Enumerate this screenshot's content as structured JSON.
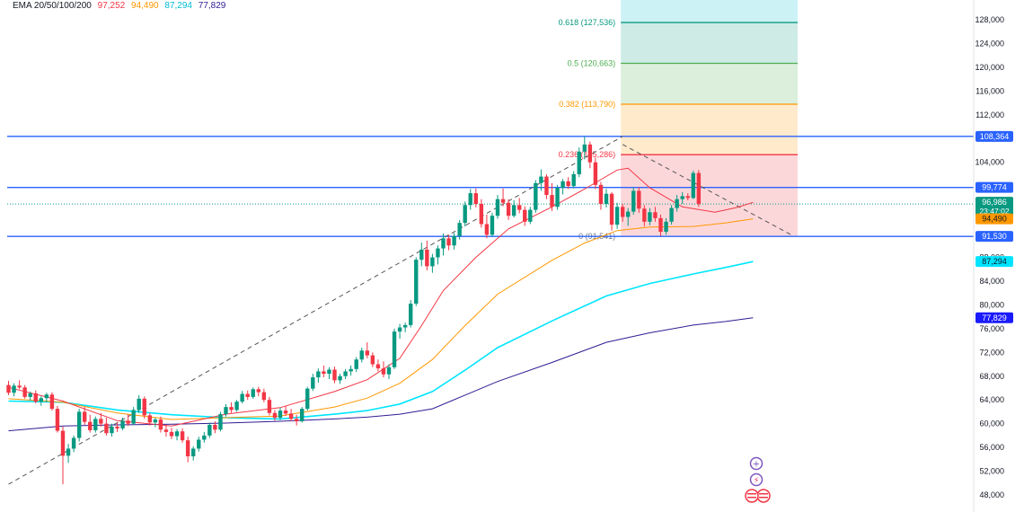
{
  "colors": {
    "up": "#089981",
    "down": "#f23645",
    "ema20": "#f23645",
    "ema50": "#ff9800",
    "ema100": "#00e5ff",
    "ema200": "#311b92",
    "hline": "#2962ff",
    "fib_0": "#787b86",
    "fib_0236": "#f23645",
    "fib_0382": "#ff9800",
    "fib_05": "#4caf50",
    "fib_0618": "#089981"
  },
  "legend": {
    "label": "EMA 20/50/100/200",
    "ema20": "97,252",
    "ema50": "94,490",
    "ema100": "87,294",
    "ema200": "77,829"
  },
  "price_tags": [
    {
      "key": "hl1",
      "text": "108,364",
      "value": 108364,
      "color": "#2962ff",
      "text_color": "#ffffff"
    },
    {
      "key": "hl2",
      "text": "99,774",
      "value": 99774,
      "color": "#2962ff",
      "text_color": "#ffffff"
    },
    {
      "key": "ema20",
      "text": "97,252",
      "value": 97252,
      "color": "#f23645",
      "text_color": "#ffffff"
    },
    {
      "key": "last",
      "text": "96,986",
      "sub": "23:47:02",
      "value": 96986,
      "color": "#089981",
      "text_color": "#ffffff"
    },
    {
      "key": "ema50",
      "text": "94,490",
      "value": 94490,
      "color": "#ff9800",
      "text_color": "#131722"
    },
    {
      "key": "hl3",
      "text": "91,530",
      "value": 91530,
      "color": "#2962ff",
      "text_color": "#ffffff"
    },
    {
      "key": "ema100",
      "text": "87,294",
      "value": 87294,
      "color": "#00e5ff",
      "text_color": "#131722"
    },
    {
      "key": "ema200",
      "text": "77,829",
      "value": 77829,
      "color": "#1a1aff",
      "text_color": "#ffffff"
    }
  ],
  "chart_data": {
    "type": "candlestick",
    "ylim": [
      46500,
      131000
    ],
    "y_ticks": [
      48000,
      52000,
      56000,
      60000,
      64000,
      68000,
      72000,
      76000,
      80000,
      84000,
      88000,
      104000,
      112000,
      116000,
      120000,
      124000,
      128000
    ],
    "y_tick_labels": [
      "48,000",
      "52,000",
      "56,000",
      "60,000",
      "64,000",
      "68,000",
      "72,000",
      "76,000",
      "80,000",
      "84,000",
      "88,000",
      "104,000",
      "112,000",
      "116,000",
      "120,000",
      "124,000",
      "128,000"
    ],
    "horizontal_lines": [
      108364,
      99774,
      91530
    ],
    "last_price": 96986,
    "fibonacci": {
      "levels": [
        {
          "ratio": "0",
          "value": 91541,
          "label": "0 (91,541)"
        },
        {
          "ratio": "0.236",
          "value": 105286,
          "label": "0.236 (105,286)"
        },
        {
          "ratio": "0.382",
          "value": 113790,
          "label": "0.382 (113,790)"
        },
        {
          "ratio": "0.5",
          "value": 120663,
          "label": "0.5 (120,663)"
        },
        {
          "ratio": "0.618",
          "value": 127536,
          "label": "0.618 (127,536)"
        }
      ]
    },
    "trendlines": [
      {
        "from": [
          0,
          49800
        ],
        "to": [
          113,
          108364
        ],
        "style": "dashed"
      },
      {
        "from": [
          113,
          107000
        ],
        "to": [
          137,
          91600
        ],
        "style": "dashed"
      }
    ],
    "candles": [
      {
        "o": 66500,
        "h": 67200,
        "l": 64800,
        "c": 65200
      },
      {
        "o": 65200,
        "h": 66800,
        "l": 64600,
        "c": 66400
      },
      {
        "o": 66400,
        "h": 67300,
        "l": 65800,
        "c": 66100
      },
      {
        "o": 66100,
        "h": 66500,
        "l": 64200,
        "c": 64500
      },
      {
        "o": 64500,
        "h": 65400,
        "l": 63900,
        "c": 65100
      },
      {
        "o": 65100,
        "h": 65600,
        "l": 63400,
        "c": 63700
      },
      {
        "o": 63700,
        "h": 64600,
        "l": 63000,
        "c": 64300
      },
      {
        "o": 64300,
        "h": 65200,
        "l": 63600,
        "c": 64900
      },
      {
        "o": 64900,
        "h": 65300,
        "l": 62200,
        "c": 62500
      },
      {
        "o": 62500,
        "h": 63000,
        "l": 58500,
        "c": 58800
      },
      {
        "o": 58800,
        "h": 59500,
        "l": 49800,
        "c": 54600
      },
      {
        "o": 54600,
        "h": 56600,
        "l": 53400,
        "c": 55800
      },
      {
        "o": 55800,
        "h": 58000,
        "l": 55200,
        "c": 57600
      },
      {
        "o": 57600,
        "h": 62500,
        "l": 57000,
        "c": 62000
      },
      {
        "o": 62000,
        "h": 62800,
        "l": 59800,
        "c": 60300
      },
      {
        "o": 60300,
        "h": 61500,
        "l": 58500,
        "c": 58900
      },
      {
        "o": 58900,
        "h": 61200,
        "l": 58500,
        "c": 60800
      },
      {
        "o": 60800,
        "h": 61800,
        "l": 59500,
        "c": 60000
      },
      {
        "o": 60000,
        "h": 61000,
        "l": 58000,
        "c": 58400
      },
      {
        "o": 58400,
        "h": 60000,
        "l": 57800,
        "c": 59500
      },
      {
        "o": 59500,
        "h": 60200,
        "l": 58600,
        "c": 59200
      },
      {
        "o": 59200,
        "h": 61000,
        "l": 58900,
        "c": 60500
      },
      {
        "o": 60500,
        "h": 61600,
        "l": 59600,
        "c": 60000
      },
      {
        "o": 60000,
        "h": 62800,
        "l": 59800,
        "c": 62300
      },
      {
        "o": 62300,
        "h": 64800,
        "l": 61800,
        "c": 64200
      },
      {
        "o": 64200,
        "h": 64600,
        "l": 60800,
        "c": 61400
      },
      {
        "o": 61400,
        "h": 61800,
        "l": 59700,
        "c": 60200
      },
      {
        "o": 60200,
        "h": 61000,
        "l": 59400,
        "c": 60700
      },
      {
        "o": 60700,
        "h": 61200,
        "l": 58500,
        "c": 59000
      },
      {
        "o": 59000,
        "h": 59800,
        "l": 57800,
        "c": 58600
      },
      {
        "o": 58600,
        "h": 59300,
        "l": 57400,
        "c": 57900
      },
      {
        "o": 57900,
        "h": 59100,
        "l": 57200,
        "c": 58700
      },
      {
        "o": 58700,
        "h": 59200,
        "l": 56800,
        "c": 57200
      },
      {
        "o": 57200,
        "h": 57800,
        "l": 53500,
        "c": 54500
      },
      {
        "o": 54500,
        "h": 56200,
        "l": 53800,
        "c": 55800
      },
      {
        "o": 55800,
        "h": 57800,
        "l": 55300,
        "c": 57300
      },
      {
        "o": 57300,
        "h": 58600,
        "l": 56800,
        "c": 58000
      },
      {
        "o": 58000,
        "h": 60200,
        "l": 57600,
        "c": 59800
      },
      {
        "o": 59800,
        "h": 60400,
        "l": 58400,
        "c": 59000
      },
      {
        "o": 59000,
        "h": 62000,
        "l": 58700,
        "c": 61600
      },
      {
        "o": 61600,
        "h": 63300,
        "l": 61200,
        "c": 62800
      },
      {
        "o": 62800,
        "h": 63600,
        "l": 61800,
        "c": 62300
      },
      {
        "o": 62300,
        "h": 64000,
        "l": 62000,
        "c": 63700
      },
      {
        "o": 63700,
        "h": 65500,
        "l": 63400,
        "c": 65000
      },
      {
        "o": 65000,
        "h": 65600,
        "l": 64000,
        "c": 64500
      },
      {
        "o": 64500,
        "h": 66100,
        "l": 64200,
        "c": 65800
      },
      {
        "o": 65800,
        "h": 66200,
        "l": 64600,
        "c": 65300
      },
      {
        "o": 65300,
        "h": 65900,
        "l": 63600,
        "c": 64000
      },
      {
        "o": 64000,
        "h": 64500,
        "l": 61400,
        "c": 61800
      },
      {
        "o": 61800,
        "h": 62300,
        "l": 60500,
        "c": 61000
      },
      {
        "o": 61000,
        "h": 62700,
        "l": 60600,
        "c": 62200
      },
      {
        "o": 62200,
        "h": 63000,
        "l": 61300,
        "c": 61700
      },
      {
        "o": 61700,
        "h": 62500,
        "l": 60400,
        "c": 60800
      },
      {
        "o": 60800,
        "h": 61500,
        "l": 59700,
        "c": 60400
      },
      {
        "o": 60400,
        "h": 62800,
        "l": 60200,
        "c": 62500
      },
      {
        "o": 62500,
        "h": 66200,
        "l": 62200,
        "c": 65900
      },
      {
        "o": 65900,
        "h": 68400,
        "l": 65500,
        "c": 67800
      },
      {
        "o": 67800,
        "h": 69300,
        "l": 66900,
        "c": 68800
      },
      {
        "o": 68800,
        "h": 69800,
        "l": 67800,
        "c": 68400
      },
      {
        "o": 68400,
        "h": 69500,
        "l": 67500,
        "c": 69100
      },
      {
        "o": 69100,
        "h": 69600,
        "l": 66800,
        "c": 67300
      },
      {
        "o": 67300,
        "h": 68400,
        "l": 66700,
        "c": 68000
      },
      {
        "o": 68000,
        "h": 69200,
        "l": 67500,
        "c": 68800
      },
      {
        "o": 68800,
        "h": 69800,
        "l": 68100,
        "c": 69200
      },
      {
        "o": 69200,
        "h": 71200,
        "l": 68700,
        "c": 70800
      },
      {
        "o": 70800,
        "h": 72800,
        "l": 70300,
        "c": 72300
      },
      {
        "o": 72300,
        "h": 73700,
        "l": 71000,
        "c": 71500
      },
      {
        "o": 71500,
        "h": 72000,
        "l": 69500,
        "c": 70000
      },
      {
        "o": 70000,
        "h": 70800,
        "l": 68800,
        "c": 69300
      },
      {
        "o": 69300,
        "h": 70500,
        "l": 67800,
        "c": 68300
      },
      {
        "o": 68300,
        "h": 70000,
        "l": 67500,
        "c": 69500
      },
      {
        "o": 69500,
        "h": 76000,
        "l": 69200,
        "c": 75500
      },
      {
        "o": 75500,
        "h": 76800,
        "l": 74300,
        "c": 76200
      },
      {
        "o": 76200,
        "h": 77000,
        "l": 75400,
        "c": 76600
      },
      {
        "o": 76600,
        "h": 80800,
        "l": 76200,
        "c": 80200
      },
      {
        "o": 80200,
        "h": 88000,
        "l": 79800,
        "c": 87600
      },
      {
        "o": 87600,
        "h": 90500,
        "l": 86500,
        "c": 89300
      },
      {
        "o": 89300,
        "h": 90800,
        "l": 85800,
        "c": 86500
      },
      {
        "o": 86500,
        "h": 88600,
        "l": 85400,
        "c": 88000
      },
      {
        "o": 88000,
        "h": 90000,
        "l": 86800,
        "c": 89500
      },
      {
        "o": 89500,
        "h": 92000,
        "l": 88300,
        "c": 91200
      },
      {
        "o": 91200,
        "h": 91800,
        "l": 89200,
        "c": 90000
      },
      {
        "o": 90000,
        "h": 92100,
        "l": 89300,
        "c": 91600
      },
      {
        "o": 91600,
        "h": 94300,
        "l": 91000,
        "c": 93800
      },
      {
        "o": 93800,
        "h": 97400,
        "l": 93200,
        "c": 96800
      },
      {
        "o": 96800,
        "h": 99500,
        "l": 96000,
        "c": 98800
      },
      {
        "o": 98800,
        "h": 99600,
        "l": 96400,
        "c": 97000
      },
      {
        "o": 97000,
        "h": 97800,
        "l": 93000,
        "c": 93600
      },
      {
        "o": 93600,
        "h": 95200,
        "l": 91200,
        "c": 91800
      },
      {
        "o": 91800,
        "h": 95500,
        "l": 91500,
        "c": 95000
      },
      {
        "o": 95000,
        "h": 98500,
        "l": 94500,
        "c": 97800
      },
      {
        "o": 97800,
        "h": 99600,
        "l": 96600,
        "c": 97200
      },
      {
        "o": 97200,
        "h": 97800,
        "l": 94300,
        "c": 95000
      },
      {
        "o": 95000,
        "h": 97600,
        "l": 94700,
        "c": 96800
      },
      {
        "o": 96800,
        "h": 98000,
        "l": 95400,
        "c": 96000
      },
      {
        "o": 96000,
        "h": 96600,
        "l": 93300,
        "c": 94000
      },
      {
        "o": 94000,
        "h": 96500,
        "l": 93600,
        "c": 96000
      },
      {
        "o": 96000,
        "h": 101000,
        "l": 95500,
        "c": 100500
      },
      {
        "o": 100500,
        "h": 102800,
        "l": 99200,
        "c": 101600
      },
      {
        "o": 101600,
        "h": 102000,
        "l": 97800,
        "c": 98500
      },
      {
        "o": 98500,
        "h": 100500,
        "l": 95800,
        "c": 96500
      },
      {
        "o": 96500,
        "h": 100200,
        "l": 96000,
        "c": 99700
      },
      {
        "o": 99700,
        "h": 101200,
        "l": 98600,
        "c": 100800
      },
      {
        "o": 100800,
        "h": 101500,
        "l": 99500,
        "c": 100000
      },
      {
        "o": 100000,
        "h": 102500,
        "l": 99600,
        "c": 102000
      },
      {
        "o": 102000,
        "h": 106500,
        "l": 101500,
        "c": 105800
      },
      {
        "o": 105800,
        "h": 108364,
        "l": 104500,
        "c": 107000
      },
      {
        "o": 107000,
        "h": 107500,
        "l": 103000,
        "c": 104000
      },
      {
        "o": 104000,
        "h": 104800,
        "l": 99500,
        "c": 100200
      },
      {
        "o": 100200,
        "h": 100700,
        "l": 96000,
        "c": 97000
      },
      {
        "o": 97000,
        "h": 99500,
        "l": 96400,
        "c": 98700
      },
      {
        "o": 98700,
        "h": 99000,
        "l": 92500,
        "c": 93500
      },
      {
        "o": 93500,
        "h": 97200,
        "l": 92800,
        "c": 96500
      },
      {
        "o": 96500,
        "h": 97000,
        "l": 94000,
        "c": 94800
      },
      {
        "o": 94800,
        "h": 96300,
        "l": 93300,
        "c": 95700
      },
      {
        "o": 95700,
        "h": 99800,
        "l": 95200,
        "c": 99200
      },
      {
        "o": 99200,
        "h": 99800,
        "l": 95500,
        "c": 96200
      },
      {
        "o": 96200,
        "h": 96800,
        "l": 93200,
        "c": 94000
      },
      {
        "o": 94000,
        "h": 96300,
        "l": 93400,
        "c": 95600
      },
      {
        "o": 95600,
        "h": 96500,
        "l": 94000,
        "c": 94600
      },
      {
        "o": 94600,
        "h": 95200,
        "l": 91600,
        "c": 92300
      },
      {
        "o": 92300,
        "h": 94600,
        "l": 91800,
        "c": 94000
      },
      {
        "o": 94000,
        "h": 96800,
        "l": 93500,
        "c": 96300
      },
      {
        "o": 96300,
        "h": 98500,
        "l": 95700,
        "c": 97800
      },
      {
        "o": 97800,
        "h": 99000,
        "l": 97000,
        "c": 98300
      },
      {
        "o": 98300,
        "h": 98800,
        "l": 97600,
        "c": 98000
      },
      {
        "o": 98000,
        "h": 102600,
        "l": 97800,
        "c": 102200
      },
      {
        "o": 102200,
        "h": 102700,
        "l": 96500,
        "c": 96986
      }
    ],
    "ema20": [
      [
        0,
        66100
      ],
      [
        10,
        63800
      ],
      [
        20,
        60500
      ],
      [
        30,
        59600
      ],
      [
        40,
        61600
      ],
      [
        50,
        62700
      ],
      [
        60,
        65400
      ],
      [
        66,
        67400
      ],
      [
        72,
        71000
      ],
      [
        76,
        76500
      ],
      [
        80,
        82400
      ],
      [
        86,
        88000
      ],
      [
        92,
        92800
      ],
      [
        100,
        96500
      ],
      [
        106,
        99500
      ],
      [
        112,
        102700
      ],
      [
        114,
        103000
      ],
      [
        118,
        99700
      ],
      [
        124,
        96500
      ],
      [
        130,
        95600
      ],
      [
        134,
        96400
      ],
      [
        137,
        97252
      ]
    ],
    "ema50": [
      [
        0,
        64200
      ],
      [
        10,
        63600
      ],
      [
        20,
        61800
      ],
      [
        30,
        60700
      ],
      [
        40,
        61000
      ],
      [
        50,
        61300
      ],
      [
        60,
        62800
      ],
      [
        66,
        64300
      ],
      [
        72,
        66800
      ],
      [
        78,
        70800
      ],
      [
        84,
        76500
      ],
      [
        90,
        81800
      ],
      [
        100,
        87500
      ],
      [
        106,
        90400
      ],
      [
        112,
        92500
      ],
      [
        118,
        93100
      ],
      [
        126,
        93200
      ],
      [
        132,
        93800
      ],
      [
        137,
        94490
      ]
    ],
    "ema100": [
      [
        0,
        63800
      ],
      [
        10,
        63600
      ],
      [
        20,
        62300
      ],
      [
        30,
        61500
      ],
      [
        40,
        61000
      ],
      [
        50,
        60800
      ],
      [
        60,
        61600
      ],
      [
        66,
        62200
      ],
      [
        72,
        63300
      ],
      [
        78,
        65400
      ],
      [
        84,
        69000
      ],
      [
        90,
        72800
      ],
      [
        100,
        77300
      ],
      [
        110,
        81500
      ],
      [
        118,
        83600
      ],
      [
        126,
        85200
      ],
      [
        132,
        86300
      ],
      [
        137,
        87294
      ]
    ],
    "ema200": [
      [
        0,
        58800
      ],
      [
        10,
        59600
      ],
      [
        20,
        59800
      ],
      [
        30,
        59900
      ],
      [
        40,
        60100
      ],
      [
        50,
        60400
      ],
      [
        60,
        60800
      ],
      [
        66,
        61100
      ],
      [
        72,
        61600
      ],
      [
        78,
        62500
      ],
      [
        84,
        64800
      ],
      [
        90,
        67100
      ],
      [
        100,
        70300
      ],
      [
        110,
        73700
      ],
      [
        118,
        75300
      ],
      [
        126,
        76600
      ],
      [
        132,
        77200
      ],
      [
        137,
        77829
      ]
    ]
  }
}
